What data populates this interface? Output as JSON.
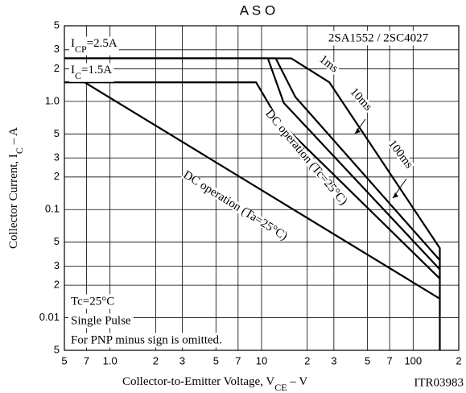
{
  "chart_data": {
    "type": "line",
    "title": "A S O",
    "subtitle": "2SA1552 / 2SC4027",
    "xlabel": {
      "parts": [
        "Collector-to-Emitter Voltage, V",
        "CE",
        " – V"
      ]
    },
    "ylabel": {
      "parts": [
        "Collector Current, I",
        "C",
        " – A"
      ]
    },
    "code": "ITR03983",
    "log_x": true,
    "log_y": true,
    "grid": true,
    "xlim": [
      0.5,
      200
    ],
    "ylim": [
      0.005,
      5
    ],
    "xticks": [
      {
        "value": 0.5,
        "label": "5"
      },
      {
        "value": 0.7,
        "label": "7"
      },
      {
        "value": 1,
        "label": "1.0"
      },
      2,
      3,
      5,
      7,
      10,
      {
        "value": 20,
        "label": "2"
      },
      {
        "value": 30,
        "label": "3"
      },
      {
        "value": 50,
        "label": "5"
      },
      {
        "value": 70,
        "label": "7"
      },
      100,
      {
        "value": 200,
        "label": "2"
      }
    ],
    "yticks": [
      5,
      3,
      2,
      {
        "value": 1,
        "label": "1.0"
      },
      {
        "value": 0.5,
        "label": "5"
      },
      {
        "value": 0.3,
        "label": "3"
      },
      {
        "value": 0.2,
        "label": "2"
      },
      0.1,
      {
        "value": 0.05,
        "label": "5"
      },
      {
        "value": 0.03,
        "label": "3"
      },
      {
        "value": 0.02,
        "label": "2"
      },
      0.01,
      {
        "value": 0.005,
        "label": "5"
      }
    ],
    "series": [
      {
        "name": "1ms",
        "color": "#000000",
        "x": [
          0.5,
          15.7,
          28,
          150,
          150
        ],
        "values": [
          2.5,
          2.5,
          1.5,
          0.044,
          0.005
        ]
      },
      {
        "name": "10ms",
        "color": "#000000",
        "x": [
          0.5,
          12.4,
          16.7,
          150
        ],
        "values": [
          2.5,
          2.5,
          1.1,
          0.034
        ]
      },
      {
        "name": "100ms",
        "color": "#000000",
        "x": [
          0.5,
          11,
          14,
          150
        ],
        "values": [
          2.5,
          2.5,
          0.97,
          0.028
        ]
      },
      {
        "name": "DC operation (Tc=25°C)",
        "color": "#000000",
        "x": [
          0.5,
          9.2,
          13,
          150
        ],
        "values": [
          1.5,
          1.5,
          0.66,
          0.023
        ]
      },
      {
        "name": "DC operation (Ta=25°C)",
        "color": "#000000",
        "x": [
          0.68,
          150
        ],
        "values": [
          1.5,
          0.015
        ]
      }
    ],
    "annotations": [
      {
        "parts": [
          "I",
          "CP",
          "=2.5A"
        ]
      },
      {
        "parts": [
          "I",
          "C",
          "=1.5A"
        ]
      }
    ],
    "notes": [
      "Tc=25°C",
      "Single Pulse",
      "For PNP minus sign is omitted."
    ]
  }
}
